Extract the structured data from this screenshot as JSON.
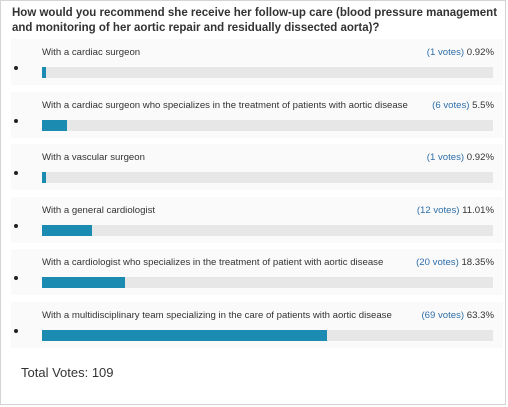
{
  "question": "How would you recommend she receive her follow-up care (blood pressure management and monitoring of her aortic repair and residually dissected aorta)?",
  "colors": {
    "bar_fill": "#1b8bb1",
    "bar_track": "#e7e7e7",
    "votes_link": "#2e6ea8"
  },
  "options": [
    {
      "label": "With a cardiac surgeon",
      "votes": "(1 votes)",
      "percent": "0.92%",
      "fraction": 0.0092
    },
    {
      "label": "With a cardiac surgeon who specializes in the treatment of patients with aortic disease",
      "votes": "(6 votes)",
      "percent": "5.5%",
      "fraction": 0.055
    },
    {
      "label": "With a vascular surgeon",
      "votes": "(1 votes)",
      "percent": "0.92%",
      "fraction": 0.0092
    },
    {
      "label": "With a general cardiologist",
      "votes": "(12 votes)",
      "percent": "11.01%",
      "fraction": 0.1101
    },
    {
      "label": "With a cardiologist who specializes in the treatment of patient with aortic disease",
      "votes": "(20 votes)",
      "percent": "18.35%",
      "fraction": 0.1835
    },
    {
      "label": "With a multidisciplinary team specializing in the care of patients with aortic disease",
      "votes": "(69 votes)",
      "percent": "63.3%",
      "fraction": 0.633
    }
  ],
  "total": "Total Votes: 109"
}
